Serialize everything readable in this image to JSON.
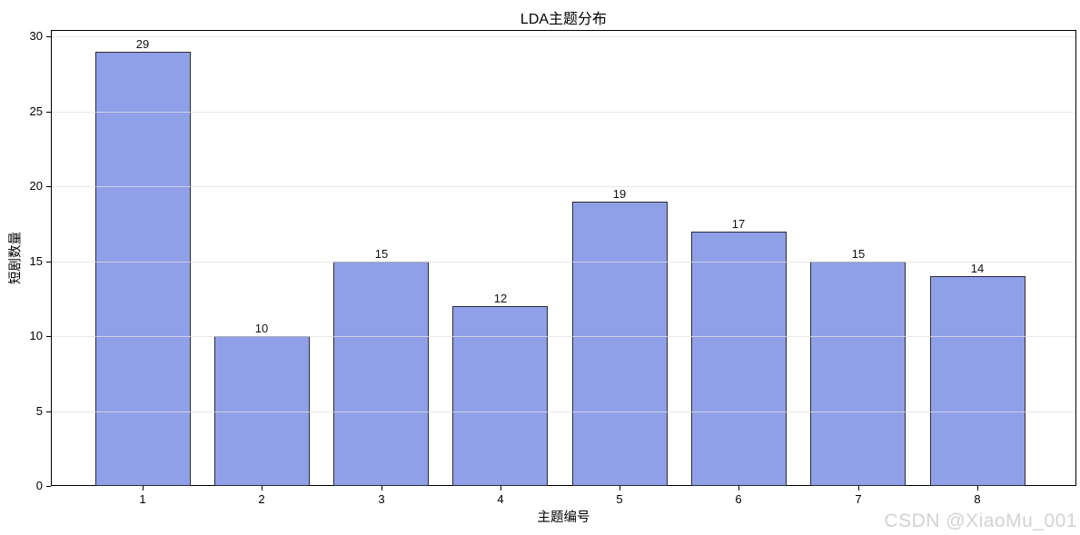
{
  "chart_data": {
    "type": "bar",
    "title": "LDA主题分布",
    "xlabel": "主题编号",
    "ylabel": "短剧数量",
    "categories": [
      "1",
      "2",
      "3",
      "4",
      "5",
      "6",
      "7",
      "8"
    ],
    "values": [
      29,
      10,
      15,
      12,
      19,
      17,
      15,
      14
    ],
    "yticks": [
      0,
      5,
      10,
      15,
      20,
      25,
      30
    ],
    "ylim": [
      0,
      30.45
    ],
    "xlim": [
      0.23,
      8.83
    ],
    "bar_width_units": 0.8,
    "grid": "horizontal",
    "legend": "none",
    "colors": {
      "bar_fill": "#8fa0e9",
      "bar_edge": "#2b2b33",
      "gridline": "#e0e0e0",
      "axis": "#000000",
      "text": "#000000"
    }
  },
  "watermark": {
    "text": "CSDN @XiaoMu_001",
    "color": "#d2d2d2"
  }
}
